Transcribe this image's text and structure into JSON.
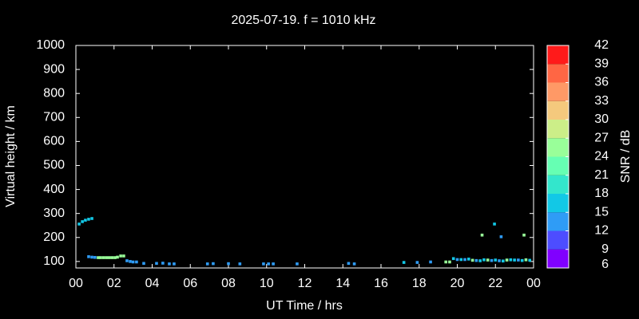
{
  "chart_data": {
    "type": "scatter",
    "title": "2025-07-19. f = 1010 kHz",
    "xlabel": "UT Time / hrs",
    "ylabel": "Virtual height / km",
    "colorbar_label": "SNR / dB",
    "xlim": [
      0,
      24
    ],
    "xticks": [
      {
        "value": 0,
        "label": "00"
      },
      {
        "value": 2,
        "label": "02"
      },
      {
        "value": 4,
        "label": "04"
      },
      {
        "value": 6,
        "label": "06"
      },
      {
        "value": 8,
        "label": "08"
      },
      10,
      12,
      14,
      16,
      18,
      20,
      22,
      {
        "value": 24,
        "label": "00"
      }
    ],
    "ylim": [
      73,
      1000
    ],
    "yticks": [
      100,
      200,
      300,
      400,
      500,
      600,
      700,
      800,
      900,
      1000
    ],
    "clim": [
      6,
      42
    ],
    "cticks": [
      6,
      9,
      12,
      15,
      18,
      21,
      24,
      27,
      30,
      33,
      36,
      39,
      42
    ],
    "colormap": [
      "#8000ff",
      "#4d4dff",
      "#2f9cf6",
      "#12c8e6",
      "#33e6cc",
      "#66ffb3",
      "#99ff99",
      "#ccee88",
      "#f4c97d",
      "#ff9966",
      "#ff6644",
      "#ff1a1a"
    ],
    "x": [
      0.17,
      0.34,
      0.5,
      0.67,
      0.84,
      0.67,
      0.84,
      1.0,
      1.17,
      1.3,
      1.45,
      1.6,
      1.75,
      1.9,
      2.05,
      2.18,
      2.35,
      2.51,
      2.68,
      2.85,
      3.0,
      3.18,
      3.56,
      4.23,
      4.56,
      4.9,
      5.15,
      6.9,
      7.2,
      8.0,
      8.6,
      9.84,
      10.1,
      10.35,
      11.6,
      14.3,
      14.6,
      17.2,
      17.9,
      18.6,
      19.4,
      19.6,
      19.8,
      20.0,
      20.2,
      20.4,
      20.6,
      20.8,
      21.0,
      21.2,
      21.4,
      21.6,
      21.8,
      22.0,
      22.2,
      22.4,
      22.6,
      22.8,
      23.0,
      23.2,
      23.4,
      23.6,
      23.8,
      21.3,
      21.95,
      22.3,
      23.5
    ],
    "y": [
      256,
      266,
      272,
      276,
      279,
      120,
      118,
      117,
      116,
      116,
      116,
      116,
      116,
      116,
      116,
      118,
      123,
      123,
      103,
      100,
      98,
      98,
      92,
      92,
      93,
      90,
      90,
      90,
      91,
      91,
      90,
      90,
      90,
      90,
      90,
      92,
      90,
      96,
      96,
      98,
      98,
      98,
      112,
      108,
      108,
      108,
      110,
      105,
      104,
      103,
      107,
      106,
      104,
      106,
      103,
      102,
      106,
      107,
      106,
      106,
      104,
      107,
      105,
      210,
      256,
      203,
      210
    ],
    "snr": [
      15,
      15,
      15,
      15,
      16,
      13,
      13,
      12,
      25,
      25,
      25,
      25,
      25,
      25,
      25,
      24,
      25,
      25,
      13,
      13,
      12,
      12,
      13,
      13,
      12,
      12,
      12,
      13,
      13,
      12,
      12,
      12,
      12,
      12,
      12,
      12,
      12,
      16,
      13,
      12,
      25,
      25,
      16,
      13,
      16,
      13,
      16,
      24,
      13,
      16,
      16,
      24,
      13,
      16,
      12,
      16,
      24,
      16,
      16,
      13,
      16,
      24,
      16,
      25,
      16,
      13,
      25
    ]
  }
}
